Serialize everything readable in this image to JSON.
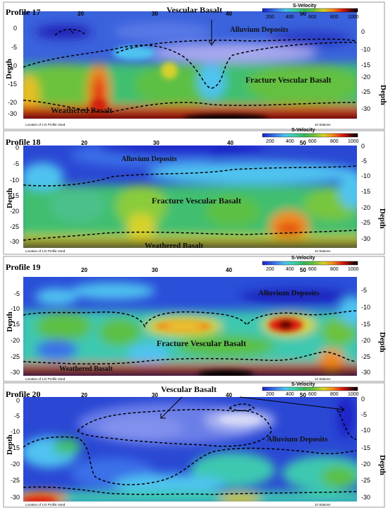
{
  "figure": {
    "legend_title": "S-Velocity",
    "legend_ticks": [
      "200",
      "400",
      "600",
      "800",
      "1000"
    ],
    "colorscale": [
      "#1a22c8",
      "#3a6fe8",
      "#4fc3f0",
      "#3ad0a0",
      "#38b45a",
      "#6cc23c",
      "#d8d22a",
      "#f08a1c",
      "#e01a10",
      "#5a0808",
      "#000000"
    ],
    "top_ticks": [
      "20",
      "30",
      "40",
      "50"
    ],
    "depth_label": "Depth",
    "depth_ticks": [
      "0",
      "-5",
      "-10",
      "-15",
      "-20",
      "-25",
      "-30"
    ],
    "footer_left": "Location of 1-D Profile Used",
    "footer_right": "10 Stations"
  },
  "profiles": [
    {
      "title": "Profile 17",
      "labels": {
        "top": "Vescular Basalt",
        "alluvium": "Alluvium Deposits",
        "fracture": "Fracture Vescular Basalt",
        "weathered": "Weathered Basalt"
      }
    },
    {
      "title": "Profile 18",
      "labels": {
        "alluvium": "Alluvium Deposits",
        "fracture": "Fracture Vescular Basalt",
        "weathered": "Weathered Basalt"
      }
    },
    {
      "title": "Profile 19",
      "labels": {
        "alluvium": "Alluvium Deposits",
        "fracture": "Fracture Vescular Basalt",
        "weathered": "Weathered Basalt"
      }
    },
    {
      "title": "Profile 20",
      "labels": {
        "top": "Vescular Basalt",
        "alluvium": "Alluvium Deposits"
      }
    }
  ]
}
